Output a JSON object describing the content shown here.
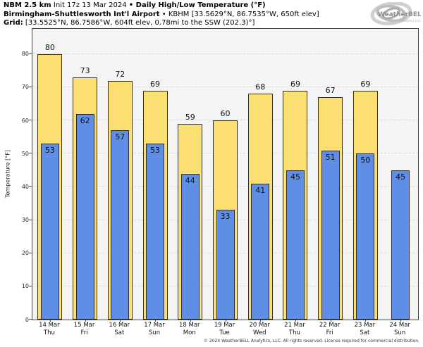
{
  "header": {
    "line1": {
      "model": "NBM 2.5 km",
      "init": " Init 17z 13 Mar 2024 ",
      "product": "• Daily High/Low Temperature (°F)"
    },
    "line2": {
      "station": "Birmingham-Shuttlesworth Int'l Airport",
      "details": " • KBHM [33.5629°N, 86.7535°W, 650ft elev]"
    },
    "line3": {
      "label": "Grid:",
      "details": " [33.5525°N, 86.7586°W, 604ft elev, 0.78mi to the SSW (202.3)°]"
    }
  },
  "logo": {
    "name": "WeatherBELL",
    "sub": "Analytics LLC"
  },
  "footer": {
    "copyright": "© 2024 WeatherBELL Analytics, LLC. All rights reserved. License required for commercial distribution."
  },
  "chart_data": {
    "type": "bar",
    "title": "NBM 2.5 km Init 17z 13 Mar 2024 • Daily High/Low Temperature (°F)",
    "subtitle": "Birmingham-Shuttlesworth Int'l Airport • KBHM [33.5629°N, 86.7535°W, 650ft elev]",
    "xlabel": "",
    "ylabel": "Temperature [°F]",
    "ylim": [
      0,
      87.6
    ],
    "yticks": [
      0,
      10,
      20,
      30,
      40,
      50,
      60,
      70,
      80
    ],
    "grid": "horizontal-dashed",
    "legend_position": "none",
    "categories": [
      "14 Mar",
      "15 Mar",
      "16 Mar",
      "17 Mar",
      "18 Mar",
      "19 Mar",
      "20 Mar",
      "21 Mar",
      "22 Mar",
      "23 Mar",
      "24 Mar"
    ],
    "weekdays": [
      "Thu",
      "Fri",
      "Sat",
      "Sun",
      "Mon",
      "Tue",
      "Wed",
      "Thu",
      "Fri",
      "Sat",
      "Sun"
    ],
    "series": [
      {
        "name": "Daily High",
        "color": "#fbdf73",
        "values": [
          80,
          73,
          72,
          69,
          59,
          60,
          68,
          69,
          67,
          69,
          null
        ]
      },
      {
        "name": "Daily Low",
        "color": "#5f8ee6",
        "values": [
          53,
          62,
          57,
          53,
          44,
          33,
          41,
          45,
          51,
          50,
          45
        ]
      }
    ],
    "colors": {
      "high_fill": "#fbdf73",
      "low_fill": "#5f8ee6",
      "bar_edge": "#2f2f2f",
      "plot_bg": "#f4f4f4",
      "gridline": "#dcdcdc",
      "axis": "#444444"
    }
  }
}
